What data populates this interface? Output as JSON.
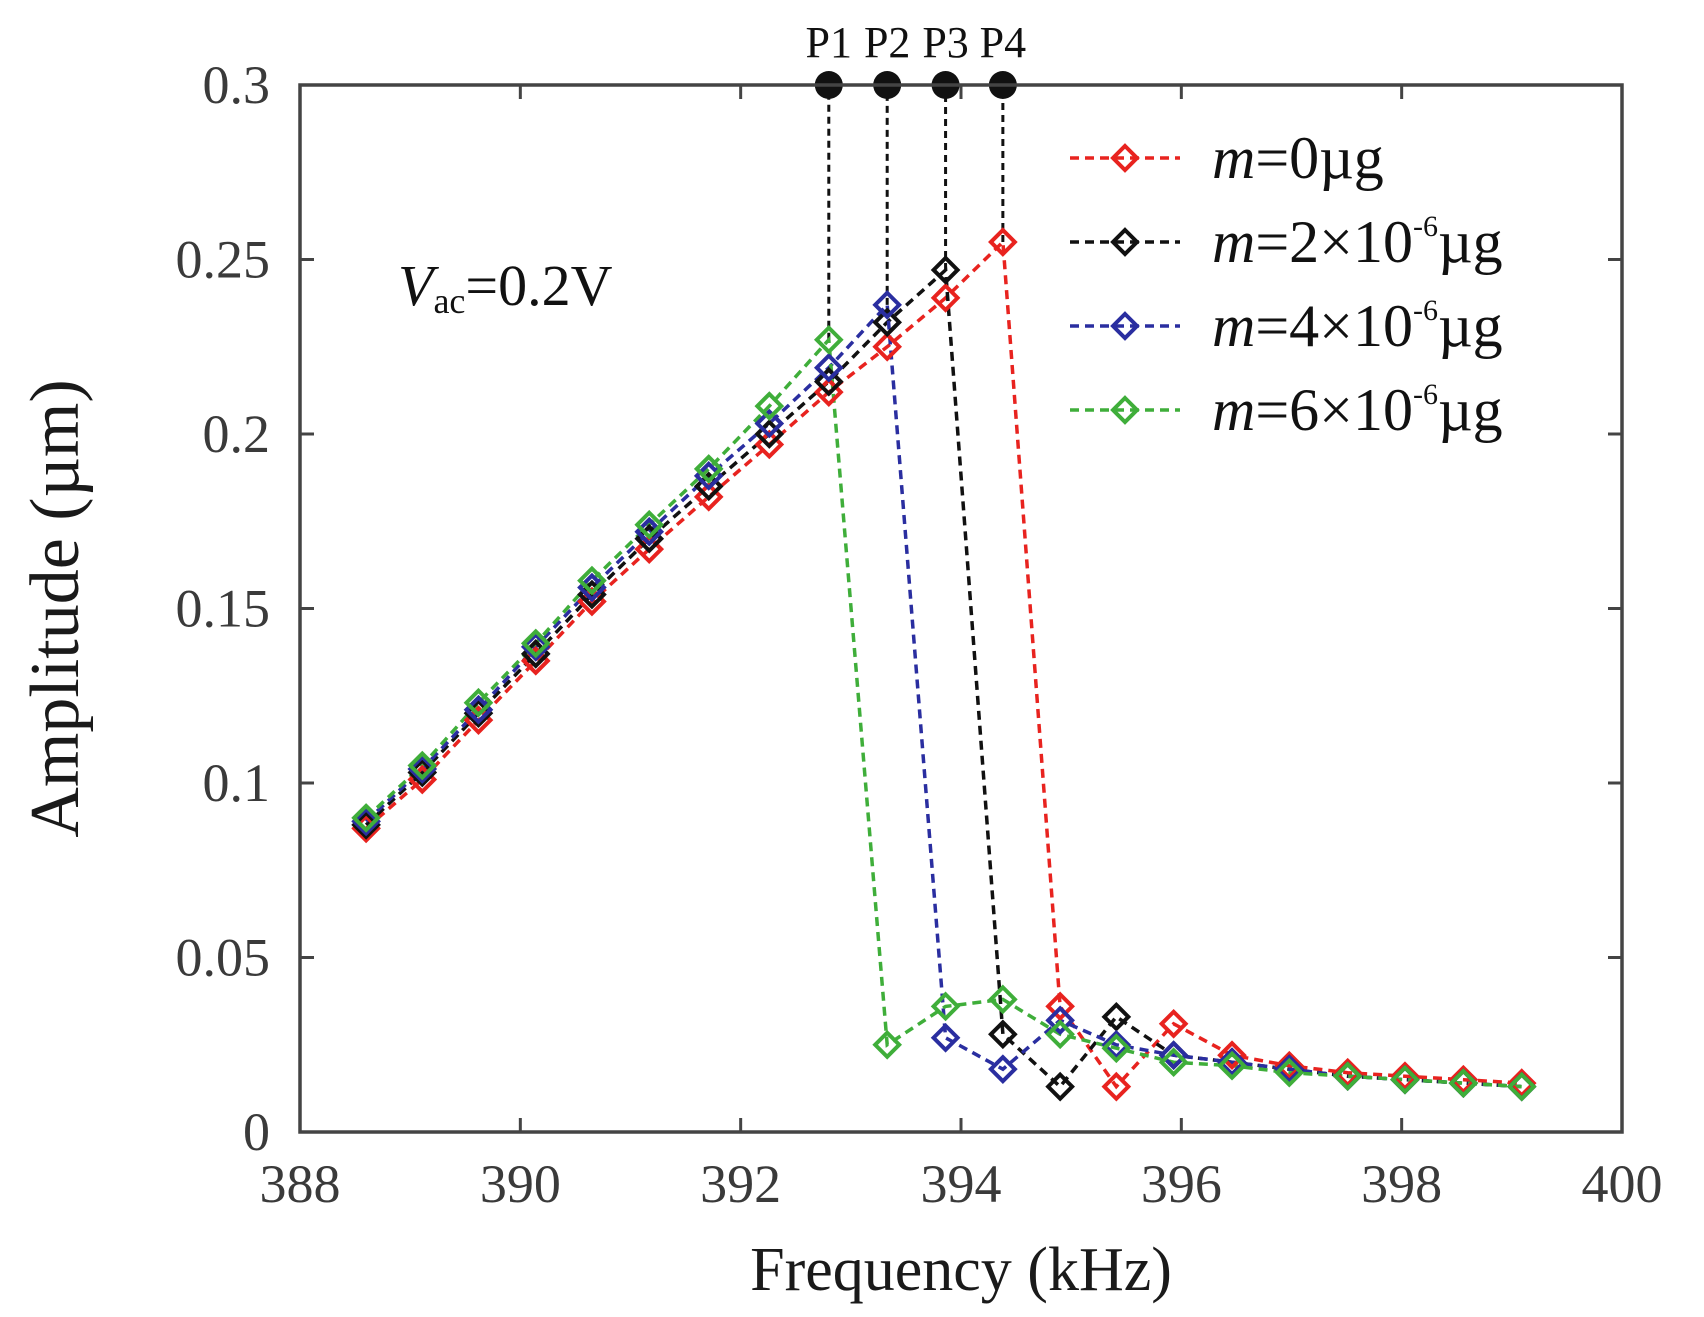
{
  "chart_data": {
    "type": "line",
    "xlabel": "Frequency (kHz)",
    "ylabel": "Amplitude (µm)",
    "xlim": [
      388,
      400
    ],
    "ylim": [
      0,
      0.3
    ],
    "xticks": [
      388,
      390,
      392,
      394,
      396,
      398,
      400
    ],
    "xtick_labels": [
      "388",
      "390",
      "392",
      "394",
      "396",
      "398",
      "400"
    ],
    "yticks": [
      0,
      0.05,
      0.1,
      0.15,
      0.2,
      0.25,
      0.3
    ],
    "ytick_labels": [
      "0",
      "0.05",
      "0.1",
      "0.15",
      "0.2",
      "0.25",
      "0.3"
    ],
    "grid": false,
    "legend_position": "top-right",
    "annotation": {
      "italic": "V",
      "sub": "ac",
      "rest": "=0.2V"
    },
    "peak_markers": [
      {
        "label": "P1",
        "x": 392.8,
        "y": 0.227
      },
      {
        "label": "P2",
        "x": 393.33,
        "y": 0.237
      },
      {
        "label": "P3",
        "x": 393.86,
        "y": 0.247
      },
      {
        "label": "P4",
        "x": 394.38,
        "y": 0.255
      }
    ],
    "series": [
      {
        "name": "m=0µg",
        "legend": {
          "italic": "m",
          "rest": "=0µg",
          "sup": "",
          "unit": ""
        },
        "color": "#e8231f",
        "x": [
          388.6,
          389.11,
          389.62,
          390.14,
          390.65,
          391.17,
          391.71,
          392.26,
          392.8,
          393.33,
          393.86,
          394.38,
          394.9,
          395.41,
          395.93,
          396.46,
          396.98,
          397.51,
          398.03,
          398.56,
          399.09
        ],
        "y": [
          0.087,
          0.101,
          0.118,
          0.135,
          0.152,
          0.167,
          0.182,
          0.197,
          0.212,
          0.225,
          0.239,
          0.255,
          0.036,
          0.013,
          0.031,
          0.022,
          0.019,
          0.017,
          0.016,
          0.015,
          0.014
        ]
      },
      {
        "name": "m=2×10-6µg",
        "legend": {
          "italic": "m",
          "rest": "=2×10",
          "sup": "-6",
          "unit": "µg"
        },
        "color": "#111111",
        "x": [
          388.6,
          389.11,
          389.62,
          390.14,
          390.65,
          391.17,
          391.71,
          392.26,
          392.8,
          393.33,
          393.86,
          394.38,
          394.9,
          395.41,
          395.93,
          396.46,
          396.98,
          397.51,
          398.03,
          398.56,
          399.09
        ],
        "y": [
          0.088,
          0.103,
          0.12,
          0.137,
          0.154,
          0.17,
          0.185,
          0.2,
          0.215,
          0.232,
          0.247,
          0.028,
          0.013,
          0.033,
          0.022,
          0.02,
          0.018,
          0.016,
          0.015,
          0.014,
          0.013
        ]
      },
      {
        "name": "m=4×10-6µg",
        "legend": {
          "italic": "m",
          "rest": "=4×10",
          "sup": "-6",
          "unit": "µg"
        },
        "color": "#2a2ea0",
        "x": [
          388.6,
          389.11,
          389.62,
          390.14,
          390.65,
          391.17,
          391.71,
          392.26,
          392.8,
          393.33,
          393.86,
          394.38,
          394.9,
          395.41,
          395.93,
          396.46,
          396.98,
          397.51,
          398.03,
          398.56,
          399.09
        ],
        "y": [
          0.089,
          0.104,
          0.121,
          0.139,
          0.156,
          0.172,
          0.188,
          0.203,
          0.219,
          0.237,
          0.027,
          0.018,
          0.032,
          0.025,
          0.022,
          0.02,
          0.018,
          0.016,
          0.015,
          0.014,
          0.013
        ]
      },
      {
        "name": "m=6×10-6µg",
        "legend": {
          "italic": "m",
          "rest": "=6×10",
          "sup": "-6",
          "unit": "µg"
        },
        "color": "#3fae3a",
        "x": [
          388.6,
          389.11,
          389.62,
          390.14,
          390.65,
          391.17,
          391.71,
          392.26,
          392.8,
          393.33,
          393.86,
          394.38,
          394.9,
          395.41,
          395.93,
          396.46,
          396.98,
          397.51,
          398.03,
          398.56,
          399.09
        ],
        "y": [
          0.09,
          0.105,
          0.123,
          0.14,
          0.158,
          0.174,
          0.19,
          0.208,
          0.227,
          0.025,
          0.036,
          0.038,
          0.028,
          0.024,
          0.02,
          0.019,
          0.017,
          0.016,
          0.015,
          0.014,
          0.013
        ]
      }
    ]
  }
}
